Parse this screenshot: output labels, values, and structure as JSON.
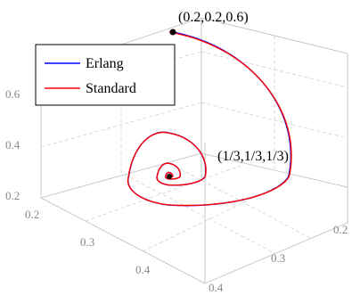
{
  "chart_data": {
    "type": "line",
    "dimensions": "3d",
    "series": [
      {
        "name": "Erlang",
        "color": "#0000ff"
      },
      {
        "name": "Standard",
        "color": "#ff0000"
      }
    ],
    "x_ticks": [
      "0.2",
      "0.3",
      "0.4"
    ],
    "y_ticks": [
      "0.2",
      "0.3",
      "0.4"
    ],
    "z_ticks": [
      "0.2",
      "0.4",
      "0.6"
    ],
    "start_point": {
      "coords": [
        0.2,
        0.2,
        0.6
      ],
      "label": "(0.2,0.2,0.6)"
    },
    "end_point": {
      "coords": [
        0.3333,
        0.3333,
        0.3333
      ],
      "label": "(1/3,1/3,1/3)"
    },
    "legend_position": "top-left",
    "grid": true
  }
}
